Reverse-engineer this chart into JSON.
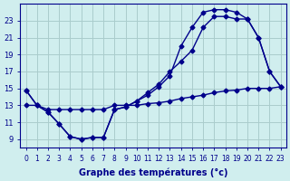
{
  "curve1_x": [
    0,
    1,
    2,
    3,
    4,
    5,
    6,
    7,
    8,
    9,
    10,
    11,
    12,
    13,
    14,
    15,
    16,
    17,
    18,
    19,
    20,
    21,
    22,
    23
  ],
  "curve1_y": [
    14.8,
    13.0,
    12.2,
    10.8,
    9.3,
    9.0,
    9.2,
    9.2,
    12.5,
    12.8,
    13.5,
    14.2,
    15.2,
    16.5,
    20.0,
    22.2,
    24.0,
    24.3,
    24.3,
    24.0,
    23.2,
    21.0,
    17.0,
    15.2
  ],
  "curve2_x": [
    0,
    1,
    2,
    3,
    4,
    5,
    6,
    7,
    8,
    9,
    10,
    11,
    12,
    13,
    14,
    15,
    16,
    17,
    18,
    19,
    20,
    21,
    22,
    23
  ],
  "curve2_y": [
    14.8,
    13.0,
    12.2,
    10.8,
    9.3,
    9.0,
    9.2,
    9.2,
    12.5,
    12.8,
    13.5,
    14.5,
    15.5,
    17.0,
    18.2,
    19.5,
    22.2,
    23.5,
    23.5,
    23.2,
    23.2,
    21.0,
    17.0,
    15.2
  ],
  "curve3_x": [
    0,
    1,
    2,
    3,
    4,
    5,
    6,
    7,
    8,
    9,
    10,
    11,
    12,
    13,
    14,
    15,
    16,
    17,
    18,
    19,
    20,
    21,
    22,
    23
  ],
  "curve3_y": [
    13.0,
    13.0,
    12.5,
    12.5,
    12.5,
    12.5,
    12.5,
    12.5,
    13.0,
    13.0,
    13.0,
    13.2,
    13.3,
    13.5,
    13.8,
    14.0,
    14.2,
    14.5,
    14.7,
    14.8,
    15.0,
    15.0,
    15.0,
    15.2
  ],
  "color": "#00008b",
  "bg_color": "#d0eeee",
  "grid_color": "#aacccc",
  "xlabel": "Graphe des températures (°c)",
  "ylim": [
    8,
    25
  ],
  "xlim": [
    0,
    23
  ],
  "yticks": [
    9,
    11,
    13,
    15,
    17,
    19,
    21,
    23
  ],
  "xticks": [
    0,
    1,
    2,
    3,
    4,
    5,
    6,
    7,
    8,
    9,
    10,
    11,
    12,
    13,
    14,
    15,
    16,
    17,
    18,
    19,
    20,
    21,
    22,
    23
  ]
}
